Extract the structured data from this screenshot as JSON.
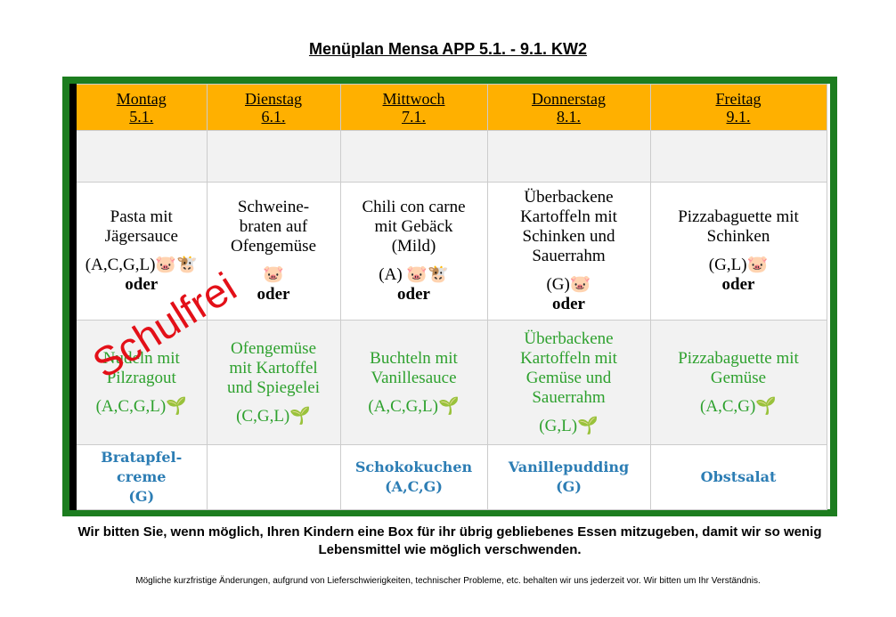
{
  "title": "Menüplan Mensa APP 5.1. - 9.1. KW2",
  "days": [
    {
      "name": "Montag",
      "date": "5.1."
    },
    {
      "name": "Dienstag",
      "date": "6.1."
    },
    {
      "name": "Mittwoch",
      "date": "7.1."
    },
    {
      "name": "Donnerstag",
      "date": "8.1."
    },
    {
      "name": "Freitag",
      "date": "9.1."
    }
  ],
  "meat": [
    {
      "dish": "Pasta mit\nJägersauce",
      "allergens": "(A,C,G,L)🐷🐮",
      "or": "oder"
    },
    {
      "dish": "Schweine-\nbraten auf\nOfengemüse",
      "allergens": "🐷",
      "or": "oder"
    },
    {
      "dish": "Chili con carne\nmit Gebäck\n(Mild)",
      "allergens": "(A) 🐷🐮",
      "or": "oder"
    },
    {
      "dish": "Überbackene\nKartoffeln mit\nSchinken und\nSauerrahm",
      "allergens": "(G)🐷",
      "or": "oder"
    },
    {
      "dish": "Pizzabaguette mit\nSchinken",
      "allergens": "(G,L)🐷",
      "or": "oder"
    }
  ],
  "veg": [
    {
      "dish": "Nudeln mit\nPilzragout",
      "allergens": "(A,C,G,L)🌱"
    },
    {
      "dish": "Ofengemüse\nmit Kartoffel\nund Spiegelei",
      "allergens": "(C,G,L)🌱"
    },
    {
      "dish": "Buchteln mit\nVanillesauce",
      "allergens": "(A,C,G,L)🌱"
    },
    {
      "dish": "Überbackene\nKartoffeln mit\nGemüse und\nSauerrahm",
      "allergens": "(G,L)🌱"
    },
    {
      "dish": "Pizzabaguette mit\nGemüse",
      "allergens": "(A,C,G)🌱"
    }
  ],
  "dessert": [
    {
      "dish": "Bratapfel-\ncreme",
      "allergens": "(G)"
    },
    null,
    {
      "dish": "Schokokuchen",
      "allergens": "(A,C,G)"
    },
    {
      "dish": "Vanillepudding",
      "allergens": "(G)"
    },
    {
      "dish": "Obstsalat"
    }
  ],
  "stamp": "Schulfrei",
  "notice": "Wir bitten Sie, wenn möglich, Ihren Kindern eine Box für ihr übrig gebliebenes Essen mitzugeben, damit wir so wenig Lebensmittel wie möglich verschwenden.",
  "footnote": "Mögliche kurzfristige Änderungen, aufgrund von Lieferschwierigkeiten, technischer Probleme, etc. behalten wir uns jederzeit vor. Wir bitten um Ihr Verständnis."
}
